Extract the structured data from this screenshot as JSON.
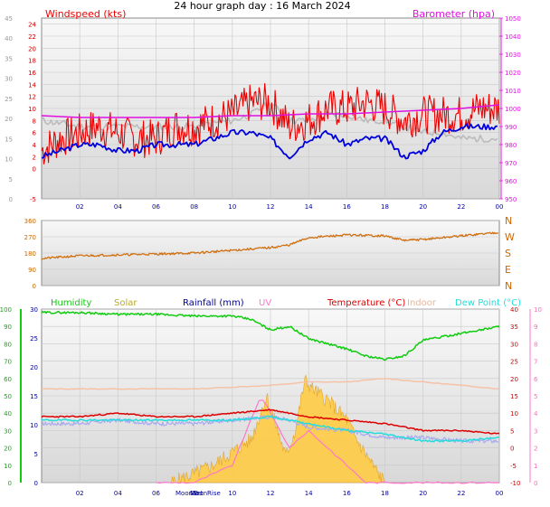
{
  "page_title": "24 hour graph day : 16 March 2024",
  "colors": {
    "windspeed": "#ee0000",
    "wind_avg": "#0000dd",
    "gust_grey": "#bbbbbb",
    "barometer": "#e010e0",
    "direction": "#d07010",
    "humidity": "#11cc11",
    "solar": "#ffcc44",
    "rainfall": "#000099",
    "uv": "#ff77cc",
    "temperature": "#dd0000",
    "indoor": "#f5c2a8",
    "dewpoint": "#22dddd",
    "apparent": "#aaaaee",
    "plot_bg": "#e8e8e8"
  },
  "chart_data": [
    {
      "type": "line",
      "name": "wind-barometer",
      "title": "24 hour graph day : 16 March 2024",
      "left_label": "Windspeed (kts)",
      "right_label": "Barometer (hpa)",
      "x_ticks": [
        "02",
        "04",
        "06",
        "08",
        "10",
        "12",
        "14",
        "16",
        "18",
        "20",
        "22",
        "00"
      ],
      "y_left_outer_ticks": [
        5,
        10,
        15,
        20,
        25,
        30,
        35,
        40,
        45
      ],
      "y_left_inner_ticks": [
        -5,
        0,
        2,
        4,
        6,
        8,
        10,
        12,
        14,
        16,
        18,
        20,
        22,
        24
      ],
      "y_right_ticks": [
        950,
        960,
        970,
        980,
        990,
        1000,
        1010,
        1020,
        1030,
        1040,
        1050
      ],
      "ylim_left": [
        -5,
        25
      ],
      "ylim_right": [
        950,
        1050
      ],
      "series": [
        {
          "name": "Windspeed (kts)",
          "points": [
            [
              0,
              3
            ],
            [
              1,
              5
            ],
            [
              2,
              6
            ],
            [
              3,
              7
            ],
            [
              4,
              6
            ],
            [
              5,
              5
            ],
            [
              6,
              5
            ],
            [
              7,
              7
            ],
            [
              8,
              7
            ],
            [
              9,
              8
            ],
            [
              10,
              9
            ],
            [
              11,
              11
            ],
            [
              12,
              11
            ],
            [
              13,
              7
            ],
            [
              14,
              8
            ],
            [
              15,
              10
            ],
            [
              16,
              10
            ],
            [
              17,
              11
            ],
            [
              18,
              10
            ],
            [
              19,
              8
            ],
            [
              20,
              9
            ],
            [
              21,
              9
            ],
            [
              22,
              9
            ],
            [
              23,
              10
            ],
            [
              24,
              10
            ]
          ]
        },
        {
          "series_role": "avg",
          "points": [
            [
              0,
              2
            ],
            [
              1,
              3
            ],
            [
              2,
              4
            ],
            [
              3,
              4
            ],
            [
              4,
              3
            ],
            [
              5,
              3
            ],
            [
              6,
              4
            ],
            [
              7,
              4
            ],
            [
              8,
              4
            ],
            [
              9,
              5
            ],
            [
              10,
              6
            ],
            [
              11,
              6
            ],
            [
              12,
              5
            ],
            [
              13,
              2
            ],
            [
              14,
              5
            ],
            [
              15,
              6
            ],
            [
              16,
              4
            ],
            [
              17,
              5
            ],
            [
              18,
              5
            ],
            [
              19,
              2
            ],
            [
              20,
              3
            ],
            [
              21,
              6
            ],
            [
              22,
              7
            ],
            [
              23,
              7
            ],
            [
              24,
              7
            ]
          ]
        },
        {
          "series_role": "gust",
          "points": [
            [
              0,
              8
            ],
            [
              2,
              7
            ],
            [
              4,
              7
            ],
            [
              6,
              7
            ],
            [
              8,
              7
            ],
            [
              10,
              8
            ],
            [
              11,
              9
            ],
            [
              12,
              11
            ],
            [
              13,
              8
            ],
            [
              14,
              8
            ],
            [
              15,
              9
            ],
            [
              16,
              9
            ],
            [
              17,
              8
            ],
            [
              18,
              8
            ],
            [
              19,
              7
            ],
            [
              20,
              6
            ],
            [
              21,
              6
            ],
            [
              22,
              5
            ],
            [
              23,
              5
            ],
            [
              24,
              5
            ]
          ]
        },
        {
          "name": "Barometer (hpa)",
          "points": [
            [
              0,
              996
            ],
            [
              2,
              995
            ],
            [
              4,
              995
            ],
            [
              6,
              995
            ],
            [
              8,
              995
            ],
            [
              10,
              996
            ],
            [
              12,
              996
            ],
            [
              14,
              997
            ],
            [
              16,
              997
            ],
            [
              18,
              998
            ],
            [
              20,
              999
            ],
            [
              22,
              1000
            ],
            [
              24,
              1002
            ]
          ]
        }
      ]
    },
    {
      "type": "line",
      "name": "wind-direction",
      "y_left_ticks": [
        0,
        90,
        180,
        270,
        360
      ],
      "y_right_ticks": [
        "N",
        "W",
        "S",
        "E",
        "N"
      ],
      "ylim": [
        0,
        360
      ],
      "series": [
        {
          "name": "direction",
          "points": [
            [
              0,
              150
            ],
            [
              2,
              165
            ],
            [
              4,
              170
            ],
            [
              6,
              175
            ],
            [
              8,
              180
            ],
            [
              10,
              195
            ],
            [
              12,
              210
            ],
            [
              13,
              225
            ],
            [
              14,
              265
            ],
            [
              16,
              280
            ],
            [
              18,
              275
            ],
            [
              19,
              250
            ],
            [
              20,
              255
            ],
            [
              22,
              275
            ],
            [
              24,
              295
            ]
          ]
        }
      ]
    },
    {
      "type": "line",
      "name": "humidity-temperature",
      "legend": [
        "Humidity",
        "Solar",
        "Rainfall (mm)",
        "UV",
        "Temperature (°C)",
        "Indoor",
        "Dew Point (°C)"
      ],
      "moon_labels": [
        "MoonSet",
        "MoonRise"
      ],
      "x_ticks": [
        "02",
        "04",
        "06",
        "08",
        "10",
        "12",
        "14",
        "16",
        "18",
        "20",
        "22",
        "00"
      ],
      "y_humidity_ticks": [
        0,
        10,
        20,
        30,
        40,
        50,
        60,
        70,
        80,
        90,
        100
      ],
      "y_rain_ticks": [
        0,
        5,
        10,
        15,
        20,
        25,
        30
      ],
      "y_temp_ticks": [
        -10,
        -5,
        0,
        5,
        10,
        15,
        20,
        25,
        30,
        35,
        40
      ],
      "y_uv_ticks": [
        0,
        1,
        2,
        3,
        4,
        5,
        6,
        7,
        8,
        9,
        10
      ],
      "series": [
        {
          "name": "Humidity",
          "points": [
            [
              0,
              98
            ],
            [
              2,
              98
            ],
            [
              4,
              97
            ],
            [
              6,
              97
            ],
            [
              8,
              96
            ],
            [
              10,
              96
            ],
            [
              11,
              94
            ],
            [
              12,
              88
            ],
            [
              13,
              90
            ],
            [
              14,
              83
            ],
            [
              16,
              77
            ],
            [
              17,
              73
            ],
            [
              18,
              71
            ],
            [
              19,
              73
            ],
            [
              20,
              82
            ],
            [
              22,
              86
            ],
            [
              24,
              90
            ]
          ]
        },
        {
          "name": "Temperature (°C)",
          "points": [
            [
              0,
              9
            ],
            [
              2,
              9
            ],
            [
              4,
              10
            ],
            [
              6,
              9
            ],
            [
              8,
              9
            ],
            [
              10,
              10
            ],
            [
              12,
              11
            ],
            [
              13,
              10
            ],
            [
              14,
              9
            ],
            [
              16,
              8
            ],
            [
              18,
              7
            ],
            [
              20,
              5
            ],
            [
              22,
              5
            ],
            [
              24,
              4
            ]
          ]
        },
        {
          "name": "Indoor",
          "points": [
            [
              0,
              17
            ],
            [
              4,
              17
            ],
            [
              8,
              17
            ],
            [
              12,
              18
            ],
            [
              14,
              19
            ],
            [
              16,
              19
            ],
            [
              18,
              20
            ],
            [
              20,
              19
            ],
            [
              22,
              18
            ],
            [
              24,
              17
            ]
          ]
        },
        {
          "name": "Dew Point (°C)",
          "points": [
            [
              0,
              8
            ],
            [
              4,
              8
            ],
            [
              8,
              8
            ],
            [
              10,
              8
            ],
            [
              12,
              9
            ],
            [
              14,
              7
            ],
            [
              16,
              5
            ],
            [
              18,
              4
            ],
            [
              20,
              2
            ],
            [
              22,
              2
            ],
            [
              24,
              3
            ]
          ]
        },
        {
          "series_role": "apparent",
          "points": [
            [
              0,
              7
            ],
            [
              2,
              7
            ],
            [
              4,
              8
            ],
            [
              6,
              7
            ],
            [
              8,
              7
            ],
            [
              10,
              8
            ],
            [
              12,
              9
            ],
            [
              13,
              8
            ],
            [
              14,
              6
            ],
            [
              16,
              5
            ],
            [
              17,
              4
            ],
            [
              18,
              3
            ],
            [
              20,
              3
            ],
            [
              22,
              2
            ],
            [
              24,
              2
            ]
          ]
        },
        {
          "name": "Solar",
          "points": [
            [
              6.8,
              0
            ],
            [
              8,
              40
            ],
            [
              9,
              80
            ],
            [
              10,
              140
            ],
            [
              11,
              200
            ],
            [
              11.8,
              400
            ],
            [
              12.3,
              260
            ],
            [
              12.8,
              120
            ],
            [
              13.3,
              240
            ],
            [
              13.8,
              470
            ],
            [
              14.4,
              420
            ],
            [
              15,
              380
            ],
            [
              16,
              290
            ],
            [
              16.5,
              200
            ],
            [
              17,
              130
            ],
            [
              17.5,
              60
            ],
            [
              18,
              0
            ]
          ]
        },
        {
          "name": "UV",
          "points": [
            [
              6,
              0
            ],
            [
              8,
              0
            ],
            [
              10,
              1
            ],
            [
              11.5,
              5
            ],
            [
              12,
              4
            ],
            [
              13,
              2
            ],
            [
              14,
              3
            ],
            [
              15,
              2
            ],
            [
              16,
              1
            ],
            [
              17,
              0
            ],
            [
              24,
              0
            ]
          ]
        }
      ]
    }
  ]
}
